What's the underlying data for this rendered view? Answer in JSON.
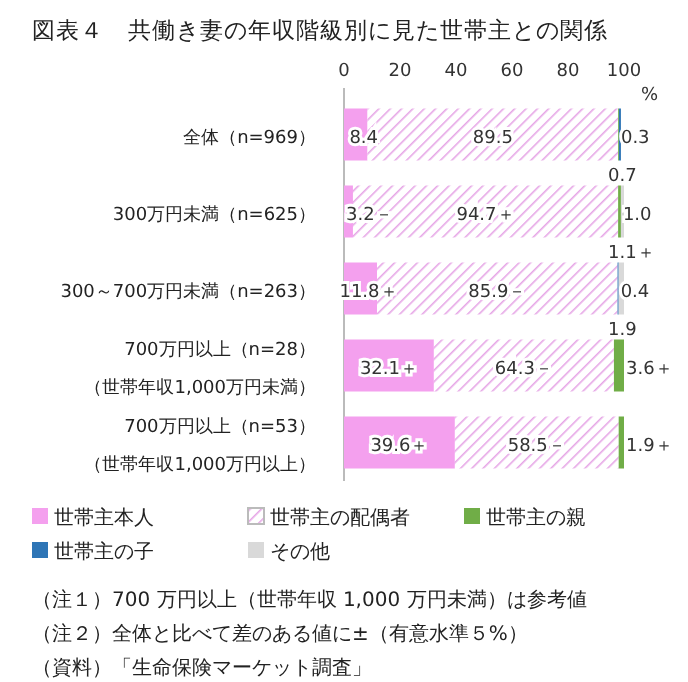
{
  "chart_data": {
    "type": "bar",
    "orientation": "horizontal",
    "stacked": true,
    "title": "図表４　共働き妻の年収階級別に見た世帯主との関係",
    "xlabel": "%",
    "categories": [
      "全体（n=969）",
      "300万円未満（n=625）",
      "300～700万円未満（n=263）",
      "700万円以上（n=28）（世帯年収1,000万円未満）",
      "700万円以上（n=53）（世帯年収1,000万円以上）"
    ],
    "series": [
      {
        "name": "世帯主本人",
        "color": "#f4a0ee",
        "values": [
          8.4,
          3.2,
          11.8,
          32.1,
          39.6
        ],
        "value_labels": [
          "8.4",
          "3.2－",
          "11.8＋",
          "32.1＋",
          "39.6＋"
        ]
      },
      {
        "name": "世帯主の配偶者",
        "color": "#e6a6e6",
        "values": [
          89.5,
          94.7,
          85.9,
          64.3,
          58.5
        ],
        "value_labels": [
          "89.5",
          "94.7＋",
          "85.9－",
          "64.3－",
          "58.5－"
        ]
      },
      {
        "name": "世帯主の親",
        "color": "#70ad47",
        "values": [
          0.3,
          1.0,
          null,
          3.6,
          1.9
        ],
        "value_labels": [
          "0.3",
          "1.0",
          null,
          "3.6＋",
          "1.9＋"
        ]
      },
      {
        "name": "世帯主の子",
        "color": "#2e75b6",
        "values": [
          0.7,
          null,
          0.4,
          null,
          null
        ],
        "value_labels": [
          "0.7",
          null,
          "0.4",
          null,
          null
        ]
      },
      {
        "name": "その他",
        "color": "#d9d9d9",
        "values": [
          null,
          1.1,
          1.9,
          null,
          null
        ],
        "value_labels": [
          null,
          "1.1＋",
          "1.9",
          null,
          null
        ]
      }
    ],
    "xlim": [
      0,
      100
    ],
    "xticks": [
      0,
      20,
      40,
      60,
      80,
      100
    ],
    "legend": "bottom",
    "annotations": [
      "（注１）700 万円以上（世帯年収 1,000 万円未満）は参考値",
      "（注２）全体と比べて差のある値に±（有意水準５%）",
      "（資料）「生命保険マーケット調査」"
    ]
  }
}
